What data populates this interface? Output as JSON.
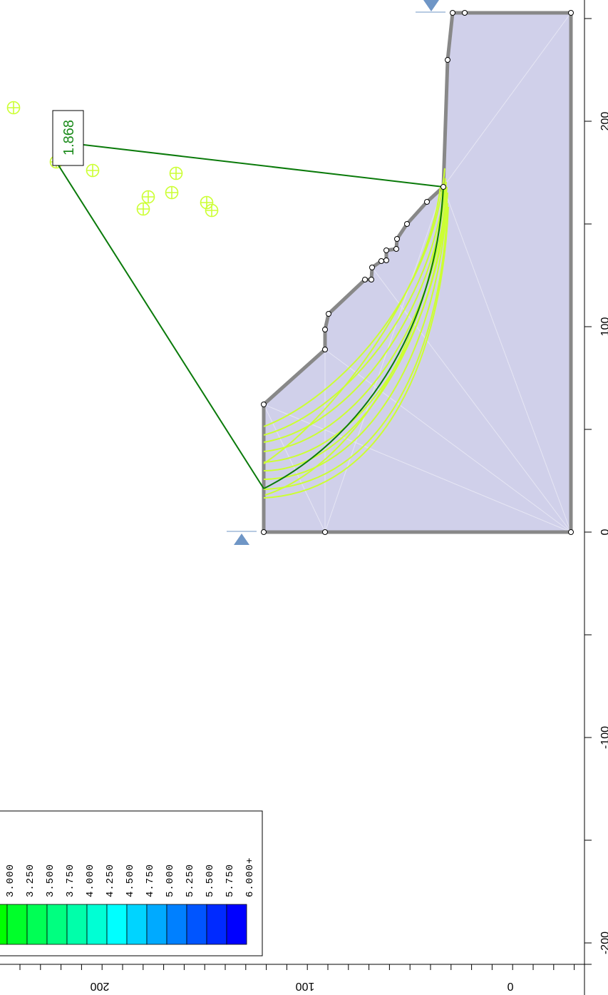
{
  "right_axis": {
    "tick_labels": [
      "200",
      "100",
      "0",
      "-100",
      "-200"
    ]
  },
  "bottom_axis": {
    "tick_labels": [
      "200",
      "100",
      "0"
    ]
  },
  "factor_of_safety": "1.868",
  "legend": {
    "labels": [
      "3.000",
      "3.250",
      "3.500",
      "3.750",
      "4.000",
      "4.250",
      "4.500",
      "4.750",
      "5.000",
      "5.250",
      "5.500",
      "5.750",
      "6.000+"
    ],
    "colors": [
      "#00ff00",
      "#00ff2a",
      "#00ff55",
      "#00ff80",
      "#00ffaa",
      "#00ffd4",
      "#00ffff",
      "#00d4ff",
      "#00aaff",
      "#0080ff",
      "#0055ff",
      "#002aff",
      "#0000ff"
    ]
  },
  "colors": {
    "material_fill": "#d0d0ea",
    "boundary": "#888888",
    "critical_surface": "#0a7a0a",
    "trial_surfaces": "#ccff33",
    "water_marker": "#6f96c6"
  }
}
